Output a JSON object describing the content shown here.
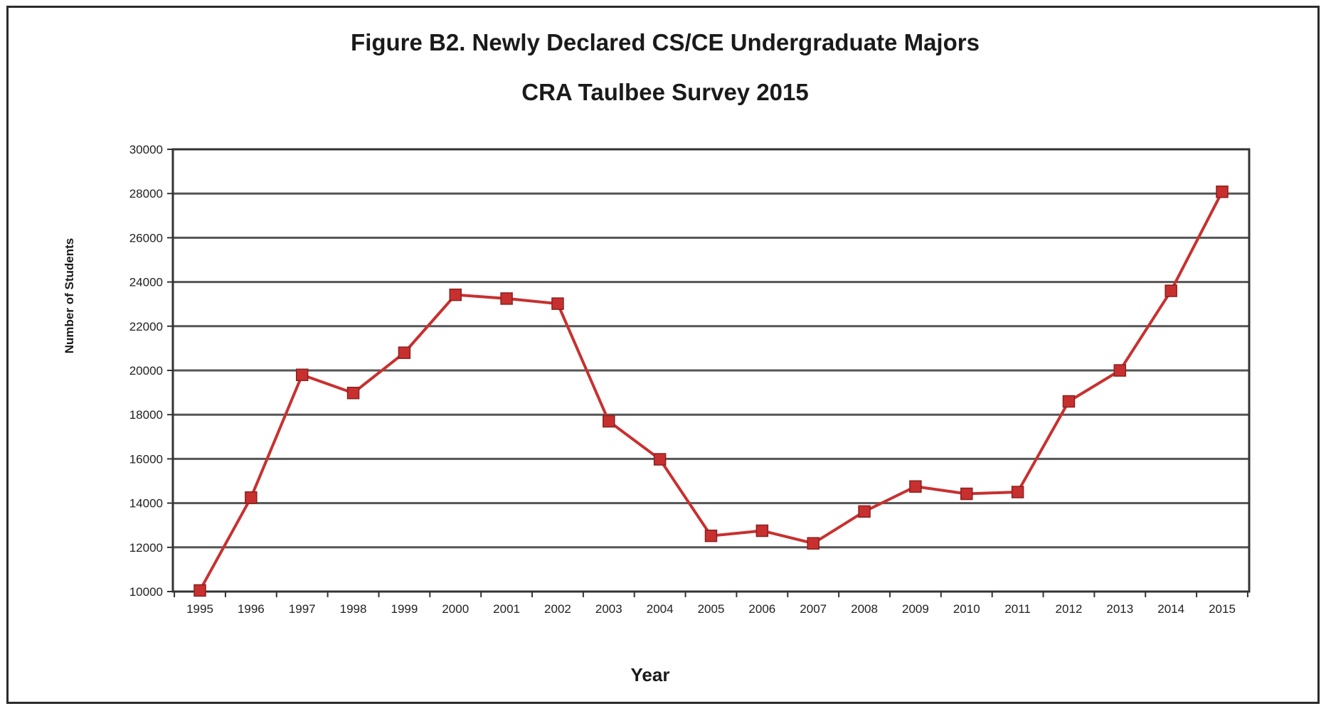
{
  "chart_data": {
    "type": "line",
    "title": "Figure B2. Newly Declared CS/CE Undergraduate Majors",
    "subtitle": "CRA Taulbee Survey 2015",
    "xlabel": "Year",
    "ylabel": "Number of Students",
    "ylim": [
      10000,
      30000
    ],
    "yticks": [
      10000,
      12000,
      14000,
      16000,
      18000,
      20000,
      22000,
      24000,
      26000,
      28000,
      30000
    ],
    "grid": true,
    "legend": "none",
    "categories": [
      "1995",
      "1996",
      "1997",
      "1998",
      "1999",
      "2000",
      "2001",
      "2002",
      "2003",
      "2004",
      "2005",
      "2006",
      "2007",
      "2008",
      "2009",
      "2010",
      "2011",
      "2012",
      "2013",
      "2014",
      "2015"
    ],
    "series": [
      {
        "values": [
          10050,
          14250,
          19800,
          18980,
          20800,
          23420,
          23250,
          23020,
          17700,
          15980,
          12520,
          12750,
          12180,
          13620,
          14750,
          14420,
          14500,
          18600,
          20000,
          23600,
          28080
        ],
        "color": "#c8302f",
        "marker": "square"
      }
    ]
  }
}
